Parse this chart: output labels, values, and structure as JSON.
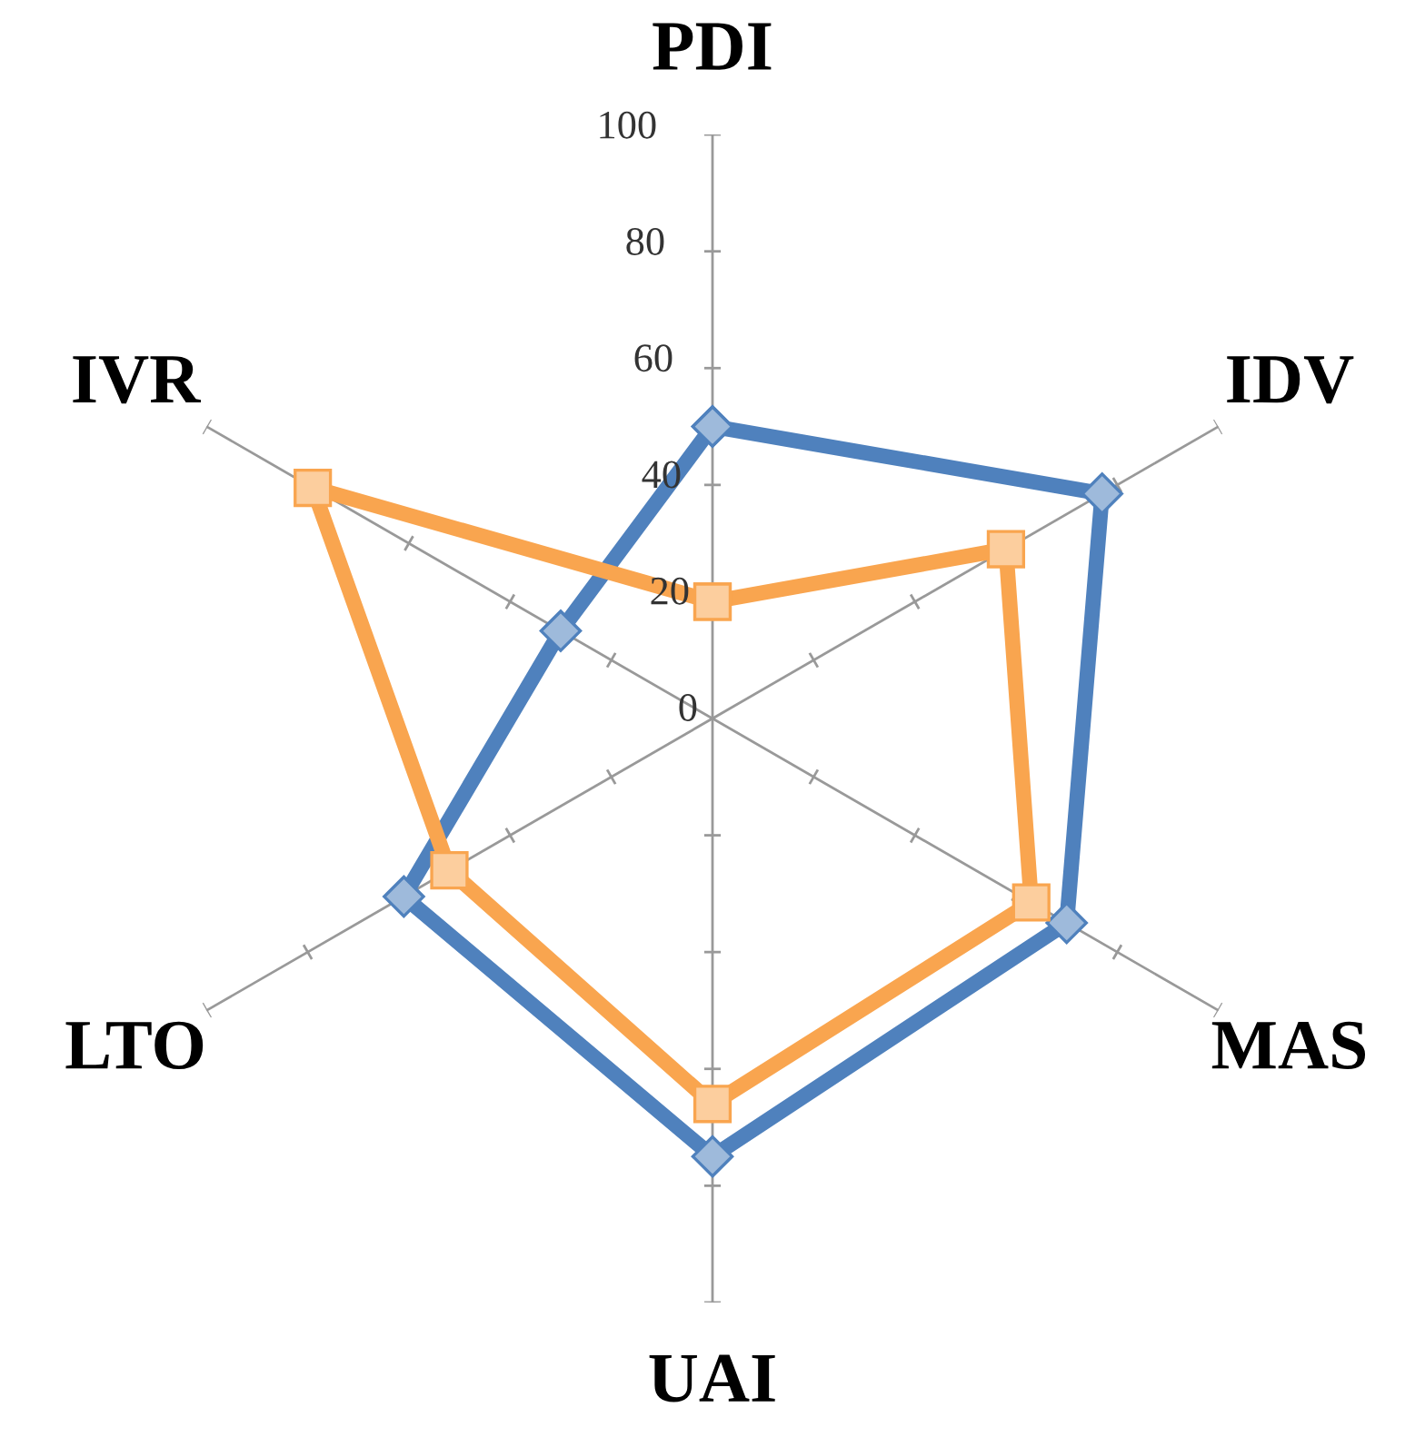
{
  "chart_data": {
    "type": "radar",
    "categories": [
      "PDI",
      "IDV",
      "MAS",
      "UAI",
      "LTO",
      "IVR"
    ],
    "ylim": [
      0,
      100
    ],
    "yticks": [
      0,
      20,
      40,
      60,
      80,
      100
    ],
    "grid": "x",
    "legend": false,
    "series": [
      {
        "color": "#4f81bd",
        "marker": "diamond",
        "values": [
          50,
          77,
          70,
          75,
          61,
          30
        ]
      },
      {
        "color": "#f9a54f",
        "marker": "square",
        "values": [
          20,
          58,
          63,
          66,
          52,
          79
        ]
      }
    ]
  }
}
